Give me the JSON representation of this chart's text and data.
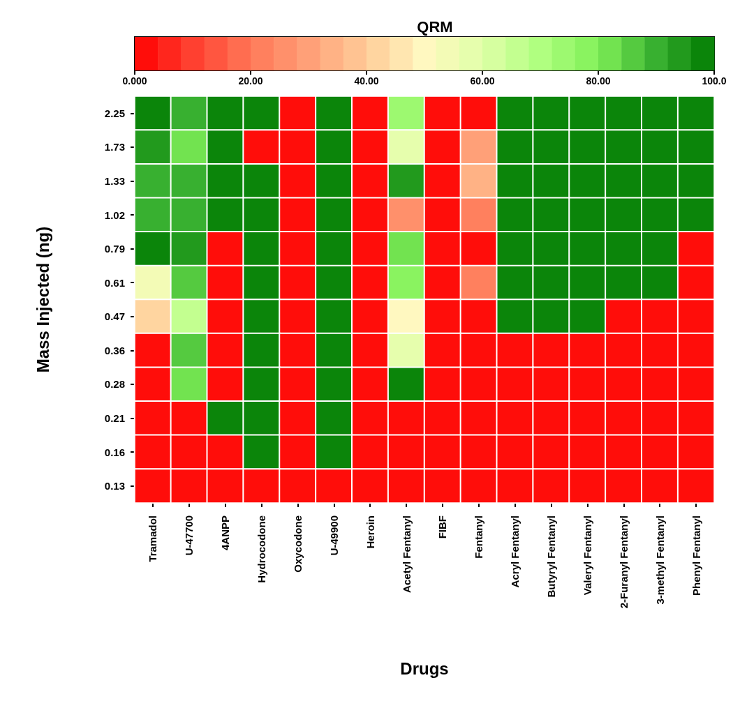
{
  "chart_data": {
    "type": "heatmap",
    "xlabel": "Drugs",
    "ylabel": "Mass Injected (ng)",
    "clabel": "QRM",
    "categories": [
      "Tramadol",
      "U-47700",
      "4ANPP",
      "Hydrocodone",
      "Oxycodone",
      "U-49900",
      "Heroin",
      "Acetyl Fentanyl",
      "FIBF",
      "Fentanyl",
      "Acryl Fentanyl",
      "Butyryl Fentanyl",
      "Valeryl Fentanyl",
      "2-Furanyl Fentanyl",
      "3-methyl Fentanyl",
      "Phenyl Fentanyl"
    ],
    "y_categories": [
      "2.25",
      "1.73",
      "1.33",
      "1.02",
      "0.79",
      "0.61",
      "0.47",
      "0.36",
      "0.28",
      "0.21",
      "0.16",
      "0.13"
    ],
    "cells": [
      [
        100,
        88,
        100,
        100,
        0,
        100,
        0,
        72,
        0,
        0,
        100,
        100,
        100,
        100,
        100,
        100
      ],
      [
        95,
        80,
        100,
        0,
        0,
        100,
        0,
        58,
        0,
        30,
        100,
        100,
        100,
        100,
        100,
        100
      ],
      [
        90,
        88,
        100,
        100,
        0,
        100,
        0,
        95,
        0,
        34,
        100,
        100,
        100,
        100,
        100,
        100
      ],
      [
        90,
        88,
        100,
        100,
        0,
        100,
        0,
        26,
        0,
        22,
        100,
        100,
        100,
        100,
        100,
        100
      ],
      [
        100,
        95,
        0,
        100,
        0,
        100,
        0,
        80,
        0,
        0,
        100,
        100,
        100,
        100,
        100,
        0
      ],
      [
        52,
        84,
        0,
        100,
        0,
        100,
        0,
        76,
        0,
        22,
        100,
        100,
        100,
        100,
        100,
        0
      ],
      [
        42,
        66,
        0,
        100,
        0,
        100,
        0,
        50,
        0,
        0,
        100,
        100,
        100,
        0,
        0,
        0
      ],
      [
        0,
        85,
        0,
        100,
        0,
        100,
        0,
        58,
        0,
        0,
        0,
        0,
        0,
        0,
        0,
        0
      ],
      [
        0,
        83,
        0,
        100,
        0,
        100,
        0,
        100,
        0,
        0,
        0,
        0,
        0,
        0,
        0,
        0
      ],
      [
        0,
        0,
        100,
        100,
        0,
        100,
        0,
        0,
        0,
        0,
        0,
        0,
        0,
        0,
        0,
        0
      ],
      [
        0,
        0,
        0,
        100,
        0,
        100,
        0,
        0,
        0,
        0,
        0,
        0,
        0,
        0,
        0,
        0
      ],
      [
        0,
        0,
        0,
        0,
        0,
        0,
        0,
        0,
        0,
        0,
        0,
        0,
        0,
        0,
        0,
        0
      ]
    ],
    "clim": [
      0,
      100
    ],
    "cticks": [
      {
        "value": 0,
        "label": "0.000"
      },
      {
        "value": 20,
        "label": "20.00"
      },
      {
        "value": 40,
        "label": "40.00"
      },
      {
        "value": 60,
        "label": "60.00"
      },
      {
        "value": 80,
        "label": "80.00"
      },
      {
        "value": 100,
        "label": "100.0"
      }
    ]
  }
}
